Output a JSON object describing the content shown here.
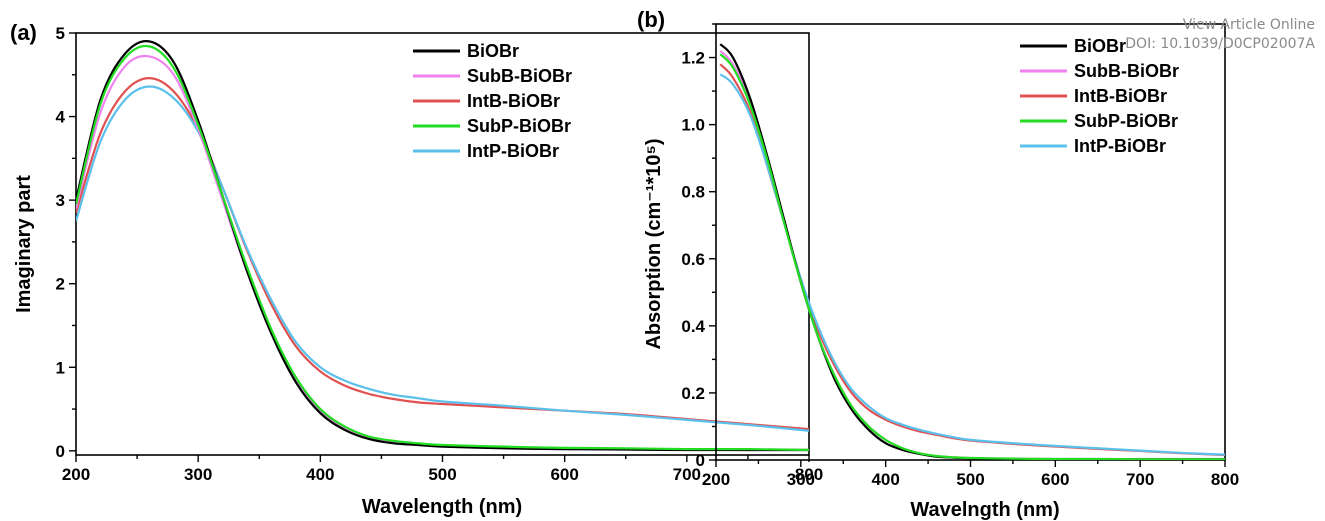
{
  "watermark": {
    "view_article": "View Article Online",
    "doi": "DOI: 10.1039/D0CP02007A"
  },
  "colors": {
    "BiOBr": "#000000",
    "SubB-BiOBr": "#ee82ee",
    "IntB-BiOBr": "#e05050",
    "SubP-BiOBr": "#22dd22",
    "IntP-BiOBr": "#5bc0eb"
  },
  "chart_data": [
    {
      "type": "line",
      "panel_label": "(a)",
      "xlabel": "Wavelength (nm)",
      "ylabel": "Imaginary part",
      "xlim": [
        200,
        800
      ],
      "ylim": [
        -0.05,
        5.0
      ],
      "xticks": [
        200,
        300,
        400,
        500,
        600,
        700,
        800
      ],
      "yticks": [
        0,
        1,
        2,
        3,
        4,
        5
      ],
      "legend_position": "top-right",
      "grid": false,
      "x": [
        200,
        220,
        240,
        260,
        280,
        300,
        320,
        340,
        360,
        380,
        400,
        420,
        440,
        460,
        480,
        500,
        550,
        600,
        650,
        700,
        750,
        800
      ],
      "series": [
        {
          "name": "BiOBr",
          "values": [
            3.0,
            4.2,
            4.75,
            4.9,
            4.65,
            3.95,
            3.05,
            2.15,
            1.4,
            0.82,
            0.45,
            0.25,
            0.14,
            0.09,
            0.07,
            0.05,
            0.03,
            0.02,
            0.015,
            0.01,
            0.01,
            0.01
          ]
        },
        {
          "name": "SubB-BiOBr",
          "values": [
            2.9,
            4.05,
            4.6,
            4.72,
            4.5,
            3.85,
            3.0,
            2.15,
            1.42,
            0.85,
            0.48,
            0.28,
            0.16,
            0.11,
            0.08,
            0.06,
            0.04,
            0.03,
            0.02,
            0.015,
            0.01,
            0.01
          ]
        },
        {
          "name": "IntB-BiOBr",
          "values": [
            2.85,
            3.8,
            4.3,
            4.46,
            4.3,
            3.85,
            3.15,
            2.4,
            1.75,
            1.25,
            0.95,
            0.78,
            0.68,
            0.62,
            0.58,
            0.56,
            0.52,
            0.48,
            0.44,
            0.38,
            0.32,
            0.26
          ]
        },
        {
          "name": "SubP-BiOBr",
          "values": [
            2.95,
            4.15,
            4.7,
            4.84,
            4.58,
            3.9,
            3.05,
            2.2,
            1.45,
            0.88,
            0.5,
            0.29,
            0.17,
            0.12,
            0.09,
            0.07,
            0.05,
            0.035,
            0.03,
            0.02,
            0.02,
            0.01
          ]
        },
        {
          "name": "IntP-BiOBr",
          "values": [
            2.75,
            3.7,
            4.2,
            4.36,
            4.22,
            3.82,
            3.15,
            2.42,
            1.8,
            1.3,
            1.0,
            0.84,
            0.74,
            0.67,
            0.63,
            0.59,
            0.54,
            0.48,
            0.43,
            0.37,
            0.31,
            0.24
          ]
        }
      ]
    },
    {
      "type": "line",
      "panel_label": "(b)",
      "xlabel": "Wavelngth (nm)",
      "ylabel": "Absorption (cm⁻¹*10⁵)",
      "xlim": [
        200,
        800
      ],
      "ylim": [
        0,
        1.3
      ],
      "xticks": [
        200,
        300,
        400,
        500,
        600,
        700,
        800
      ],
      "yticks": [
        0,
        0.2,
        0.4,
        0.6,
        0.8,
        1.0,
        1.2
      ],
      "ytick_labels": [
        "0",
        "0.2",
        "0.4",
        "0.6",
        "0.8",
        "1.0",
        "1.2"
      ],
      "legend_position": "top-right",
      "grid": false,
      "x": [
        205,
        220,
        240,
        260,
        280,
        300,
        320,
        340,
        360,
        380,
        400,
        420,
        440,
        460,
        480,
        500,
        550,
        600,
        650,
        700,
        750,
        800
      ],
      "series": [
        {
          "name": "BiOBr",
          "values": [
            1.24,
            1.2,
            1.08,
            0.91,
            0.72,
            0.53,
            0.37,
            0.24,
            0.15,
            0.09,
            0.05,
            0.03,
            0.018,
            0.01,
            0.007,
            0.005,
            0.003,
            0.002,
            0.002,
            0.002,
            0.002,
            0.002
          ]
        },
        {
          "name": "SubB-BiOBr",
          "values": [
            1.22,
            1.18,
            1.07,
            0.9,
            0.71,
            0.53,
            0.37,
            0.25,
            0.16,
            0.1,
            0.06,
            0.035,
            0.02,
            0.012,
            0.008,
            0.006,
            0.004,
            0.003,
            0.003,
            0.002,
            0.002,
            0.002
          ]
        },
        {
          "name": "IntB-BiOBr",
          "values": [
            1.18,
            1.14,
            1.04,
            0.88,
            0.71,
            0.54,
            0.39,
            0.28,
            0.2,
            0.15,
            0.12,
            0.1,
            0.085,
            0.075,
            0.065,
            0.058,
            0.048,
            0.04,
            0.033,
            0.027,
            0.02,
            0.015
          ]
        },
        {
          "name": "SubP-BiOBr",
          "values": [
            1.21,
            1.17,
            1.06,
            0.9,
            0.71,
            0.53,
            0.37,
            0.25,
            0.16,
            0.1,
            0.06,
            0.035,
            0.02,
            0.012,
            0.008,
            0.006,
            0.004,
            0.003,
            0.003,
            0.002,
            0.002,
            0.002
          ]
        },
        {
          "name": "IntP-BiOBr",
          "values": [
            1.15,
            1.12,
            1.03,
            0.88,
            0.71,
            0.54,
            0.4,
            0.29,
            0.21,
            0.16,
            0.125,
            0.105,
            0.09,
            0.078,
            0.068,
            0.06,
            0.05,
            0.042,
            0.035,
            0.028,
            0.021,
            0.016
          ]
        }
      ]
    }
  ]
}
